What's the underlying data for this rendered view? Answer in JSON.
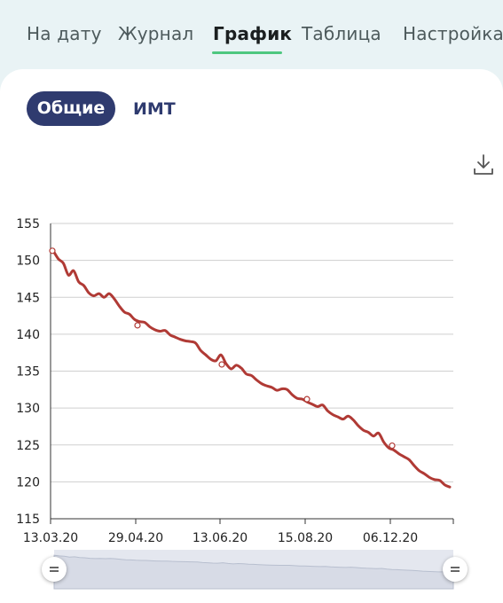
{
  "tabs": [
    {
      "label": "На дату",
      "active": false
    },
    {
      "label": "Журнал",
      "active": false
    },
    {
      "label": "График",
      "active": true
    },
    {
      "label": "Таблица",
      "active": false
    },
    {
      "label": "Настройка",
      "active": false
    }
  ],
  "segments": {
    "active": "Общие",
    "inactive": "ИМТ"
  },
  "icons": {
    "download": "download-icon",
    "slider": "grip-handle-icon"
  },
  "colors": {
    "line": "#b03a35",
    "tab_underline": "#4ec77f",
    "segment_active": "#2f3b6f",
    "grid": "#cfcfcf"
  },
  "chart_data": {
    "type": "line",
    "title": "",
    "xlabel": "",
    "ylabel": "",
    "ylim": [
      115,
      155
    ],
    "yticks": [
      115,
      120,
      125,
      130,
      135,
      140,
      145,
      150,
      155
    ],
    "xticks": [
      "13.03.20",
      "29.04.20",
      "13.06.20",
      "15.08.20",
      "06.12.20"
    ],
    "grid": true,
    "series": [
      {
        "values": [
          151.3,
          150.2,
          149.6,
          148.0,
          148.6,
          147.1,
          146.6,
          145.6,
          145.2,
          145.5,
          145.0,
          145.5,
          144.8,
          143.8,
          143.0,
          142.7,
          142.0,
          141.7,
          141.6,
          141.0,
          140.6,
          140.4,
          140.5,
          139.9,
          139.6,
          139.3,
          139.1,
          139.0,
          138.8,
          137.8,
          137.2,
          136.6,
          136.4,
          137.2,
          136.0,
          135.3,
          135.8,
          135.4,
          134.6,
          134.4,
          133.8,
          133.3,
          133.0,
          132.8,
          132.4,
          132.6,
          132.5,
          131.8,
          131.3,
          131.2,
          130.8,
          130.5,
          130.2,
          130.4,
          129.6,
          129.1,
          128.8,
          128.5,
          128.9,
          128.4,
          127.6,
          127.0,
          126.7,
          126.2,
          126.6,
          125.4,
          124.6,
          124.3,
          123.8,
          123.4,
          123.0,
          122.2,
          121.5,
          121.1,
          120.6,
          120.3,
          120.2,
          119.6,
          119.3
        ],
        "markers": [
          151.3,
          141.2,
          135.9,
          131.2,
          124.9
        ]
      }
    ]
  }
}
